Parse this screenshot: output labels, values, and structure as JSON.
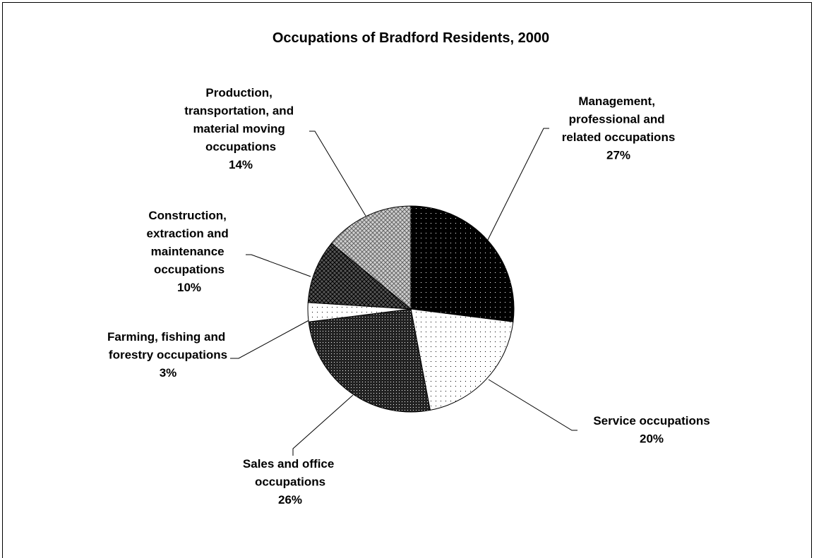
{
  "chart_data": {
    "type": "pie",
    "title": "Occupations of Bradford Residents, 2000",
    "categories": [
      "Management, professional and related occupations",
      "Service occupations",
      "Sales and office occupations",
      "Farming, fishing and forestry occupations",
      "Construction, extraction and maintenance occupations",
      "Production, transportation, and material moving occupations"
    ],
    "values": [
      27,
      20,
      26,
      3,
      10,
      14
    ],
    "value_labels": [
      "27%",
      "20%",
      "26%",
      "3%",
      "10%",
      "14%"
    ],
    "colors": [
      "#000000",
      "#ffffff",
      "#222222",
      "#ffffff",
      "#555555",
      "#d0d0d0"
    ]
  }
}
